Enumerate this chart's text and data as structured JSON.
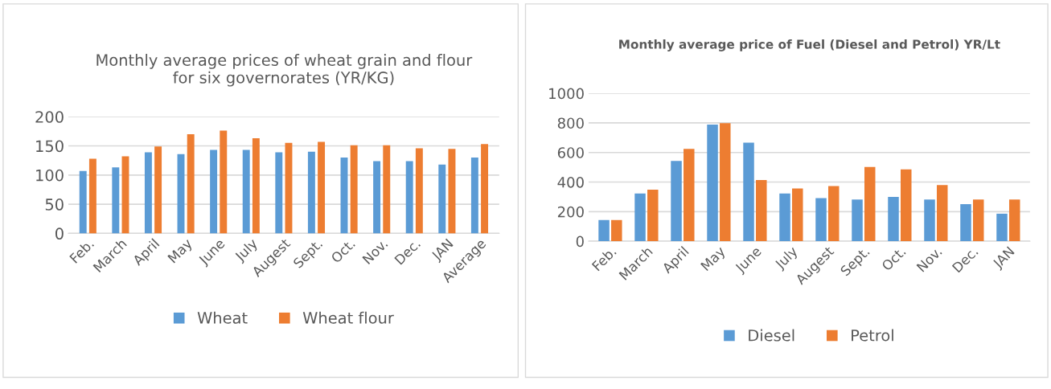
{
  "chart_data": [
    {
      "type": "bar",
      "title": "Monthly average prices of wheat grain and flour\nfor six governorates (YR/KG)",
      "categories": [
        "Feb.",
        "March",
        "April",
        "May",
        "June",
        "July",
        "Augest",
        "Sept.",
        "Oct.",
        "Nov.",
        "Dec.",
        "JAN",
        "Average"
      ],
      "series": [
        {
          "name": "Wheat",
          "color": "#5b9bd5",
          "values": [
            107,
            113,
            139,
            136,
            143,
            143,
            139,
            140,
            130,
            124,
            124,
            118,
            130
          ]
        },
        {
          "name": "Wheat flour",
          "color": "#ed7d31",
          "values": [
            128,
            132,
            149,
            170,
            176,
            163,
            155,
            157,
            151,
            151,
            146,
            145,
            153
          ]
        }
      ],
      "ylim": [
        0,
        200
      ],
      "yticks": [
        0,
        50,
        100,
        150,
        200
      ],
      "grid": "y",
      "legend": "bottom"
    },
    {
      "type": "bar",
      "title": "Monthly average price of Fuel (Diesel and Petrol) YR/Lt",
      "categories": [
        "Feb.",
        "March",
        "April",
        "May",
        "June",
        "July",
        "Augest",
        "Sept.",
        "Oct.",
        "Nov.",
        "Dec.",
        "JAN"
      ],
      "series": [
        {
          "name": "Diesel",
          "color": "#5b9bd5",
          "values": [
            143,
            323,
            543,
            789,
            666,
            323,
            291,
            282,
            300,
            282,
            250,
            186
          ]
        },
        {
          "name": "Petrol",
          "color": "#ed7d31",
          "values": [
            143,
            348,
            625,
            798,
            414,
            357,
            373,
            502,
            486,
            380,
            282,
            282
          ]
        }
      ],
      "ylim": [
        0,
        1000
      ],
      "yticks": [
        0,
        200,
        400,
        600,
        800,
        1000
      ],
      "grid": "y",
      "legend": "bottom"
    }
  ]
}
